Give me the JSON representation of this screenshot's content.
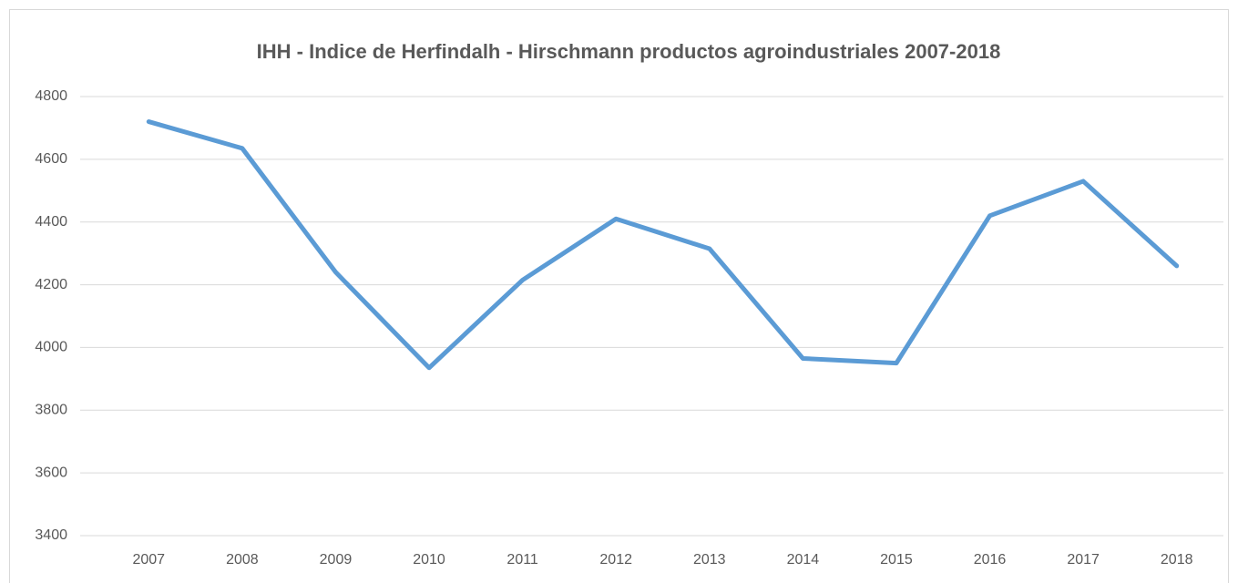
{
  "chart_data": {
    "type": "line",
    "title": "IHH - Indice de Herfindalh - Hirschmann productos agroindustriales 2007-2018",
    "categories": [
      "2007",
      "2008",
      "2009",
      "2010",
      "2011",
      "2012",
      "2013",
      "2014",
      "2015",
      "2016",
      "2017",
      "2018"
    ],
    "series": [
      {
        "name": "IHH",
        "color": "#5b9bd5",
        "values": [
          4720,
          4635,
          4240,
          3935,
          4215,
          4410,
          4315,
          3965,
          3950,
          4420,
          4530,
          4260
        ]
      }
    ],
    "ylim": [
      3400,
      4800
    ],
    "yticks": [
      3400,
      3600,
      3800,
      4000,
      4200,
      4400,
      4600,
      4800
    ],
    "grid": true
  }
}
